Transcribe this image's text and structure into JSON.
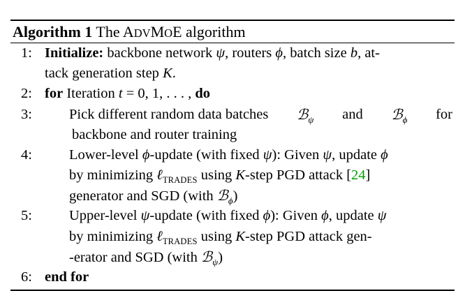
{
  "caption": {
    "label": "Algorithm 1",
    "text_pre": "The ",
    "name_A": "A",
    "name_DV": "DV",
    "name_M": "M",
    "name_OE": "O",
    "name_E": "E",
    "text_post": " algorithm"
  },
  "lines": [
    {
      "num": "1:"
    },
    {
      "num": "2:"
    },
    {
      "num": "3:"
    },
    {
      "num": "4:"
    },
    {
      "num": "5:"
    },
    {
      "num": "6:"
    }
  ],
  "step1": {
    "keyword": "Initialize:",
    "a": " backbone network ",
    "psi": "ψ",
    "b": ", routers ",
    "phi": "ϕ",
    "c": ", batch size ",
    "bvar": "b",
    "d": ", at-",
    "e": "tack generation step ",
    "K": "K",
    "f": "."
  },
  "step2": {
    "keyword": "for",
    "a": " Iteration ",
    "t": "t",
    "b": " = 0, 1, . . . , ",
    "do": "do"
  },
  "step3": {
    "a": "Pick different random data batches ",
    "B": "ℬ",
    "psi": "ψ",
    "and": " and ",
    "phi": "ϕ",
    "for": " for",
    "line2": "backbone and router training"
  },
  "step4": {
    "a": "Lower-level ",
    "phi": "ϕ",
    "b": "-update (with fixed ",
    "psi": "ψ",
    "c": "): Given ",
    "d": ", update ",
    "e": "by minimizing ",
    "ell": "ℓ",
    "trades": "TRADES",
    "f": " using ",
    "K": "K",
    "g": "-step PGD attack [",
    "cite": "24",
    "h": "]",
    "i": "generator and SGD (with ",
    "B": "ℬ",
    "j": ")"
  },
  "step5": {
    "a": "Upper-level ",
    "psi": "ψ",
    "b": "-update (with fixed ",
    "phi": "ϕ",
    "c": "): Given ",
    "d": ", update ",
    "e": "by minimizing ",
    "ell": "ℓ",
    "trades": "TRADES",
    "f": " using ",
    "K": "K",
    "g": "-step PGD attack gen-",
    "h": "-erator and SGD (with ",
    "B": "ℬ",
    "i": ")"
  },
  "step6": {
    "keyword": "end for"
  }
}
